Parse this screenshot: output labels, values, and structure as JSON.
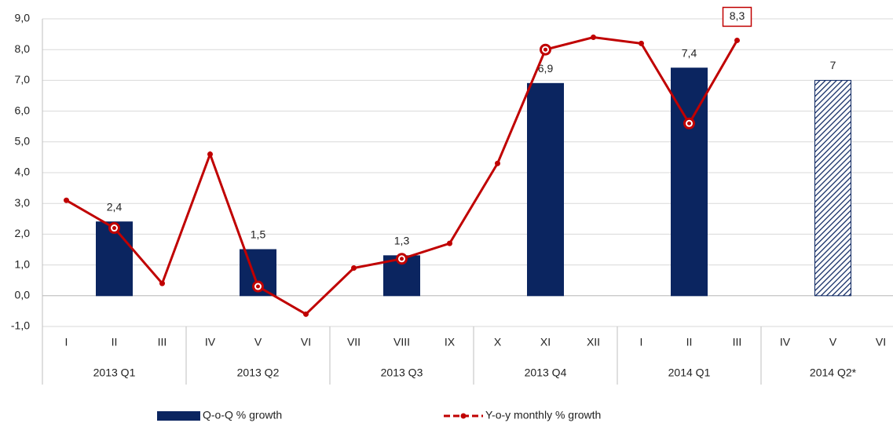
{
  "chart_data": {
    "type": "bar-line",
    "categories": [
      "I",
      "II",
      "III",
      "IV",
      "V",
      "VI",
      "VII",
      "VIII",
      "IX",
      "X",
      "XI",
      "XII",
      "I",
      "II",
      "III",
      "IV",
      "V",
      "VI"
    ],
    "groups": [
      "2013 Q1",
      "2013 Q2",
      "2013 Q3",
      "2013 Q4",
      "2014 Q1",
      "2014 Q2*"
    ],
    "series": [
      {
        "name": "Q-o-Q % growth",
        "type": "bar",
        "color": "#0b2560",
        "values": [
          null,
          2.4,
          null,
          null,
          1.5,
          null,
          null,
          1.3,
          null,
          null,
          6.9,
          null,
          null,
          7.4,
          null,
          null,
          7,
          null
        ],
        "value_labels": [
          null,
          "2,4",
          null,
          null,
          "1,5",
          null,
          null,
          "1,3",
          null,
          null,
          "6,9",
          null,
          null,
          "7,4",
          null,
          null,
          "7",
          null
        ],
        "hatched": [
          16
        ]
      },
      {
        "name": "Y-o-y monthly % growth",
        "type": "line",
        "color": "#c00000",
        "values": [
          3.1,
          2.2,
          0.4,
          4.6,
          0.3,
          -0.6,
          0.9,
          1.2,
          1.7,
          4.3,
          8.0,
          8.4,
          8.2,
          5.6,
          8.3,
          null,
          null,
          null
        ],
        "value_labels": [
          null,
          null,
          null,
          null,
          null,
          null,
          null,
          null,
          null,
          null,
          null,
          null,
          null,
          null,
          "8,3",
          null,
          null,
          null
        ]
      }
    ],
    "ylim": [
      -1,
      9
    ],
    "yticks": [
      {
        "value": -1,
        "label": "-1,0"
      },
      {
        "value": 0,
        "label": "0,0"
      },
      {
        "value": 1,
        "label": "1,0"
      },
      {
        "value": 2,
        "label": "2,0"
      },
      {
        "value": 3,
        "label": "3,0"
      },
      {
        "value": 4,
        "label": "4,0"
      },
      {
        "value": 5,
        "label": "5,0"
      },
      {
        "value": 6,
        "label": "6,0"
      },
      {
        "value": 7,
        "label": "7,0"
      },
      {
        "value": 8,
        "label": "8,0"
      },
      {
        "value": 9,
        "label": "9,0"
      }
    ],
    "grid": true
  }
}
